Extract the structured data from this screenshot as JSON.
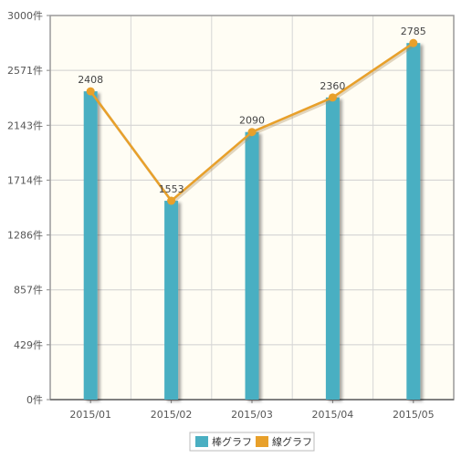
{
  "chart_data": {
    "type": "bar",
    "categories": [
      "2015/01",
      "2015/02",
      "2015/03",
      "2015/04",
      "2015/05"
    ],
    "series": [
      {
        "name": "棒グラフ",
        "type": "bar",
        "values": [
          2408,
          1553,
          2090,
          2360,
          2785
        ],
        "color": "#4aafc2"
      },
      {
        "name": "線グラフ",
        "type": "line",
        "values": [
          2408,
          1553,
          2090,
          2360,
          2785
        ],
        "color": "#e8a02a"
      }
    ],
    "y_ticks": [
      "0件",
      "429件",
      "857件",
      "1286件",
      "1714件",
      "2143件",
      "2571件",
      "3000件"
    ],
    "ylim": [
      0,
      3000
    ],
    "data_labels": [
      "2408",
      "1553",
      "2090",
      "2360",
      "2785"
    ],
    "grid": true,
    "legend_position": "bottom-center",
    "plot_background": "#fffdf4"
  }
}
